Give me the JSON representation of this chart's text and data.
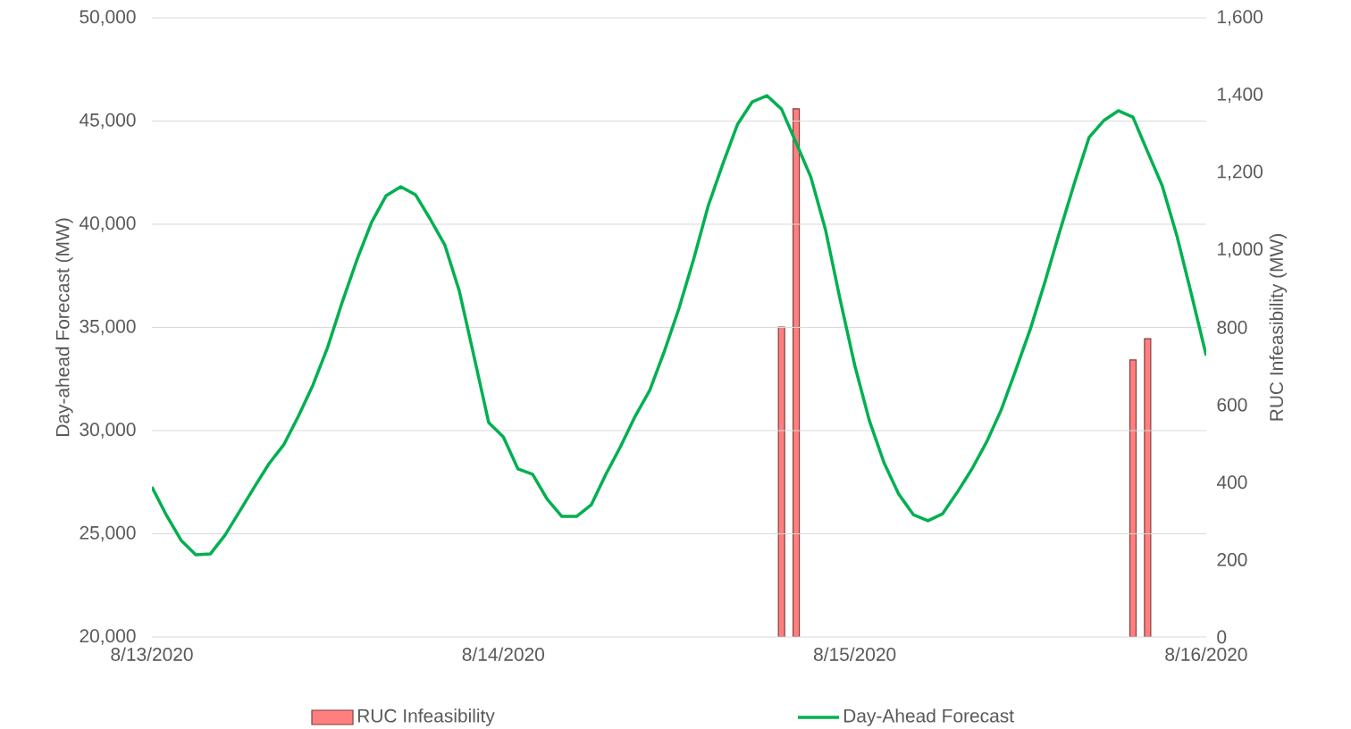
{
  "chart_data": {
    "type": "line",
    "ylabel": "Day-ahead  Forecast (MW)",
    "y2label": "RUC Infeasibility (MW)",
    "xlim": [
      "2020-08-13T00:00",
      "2020-08-16T00:00"
    ],
    "xticks": [
      {
        "value": "2020-08-13T00:00",
        "label": "8/13/2020"
      },
      {
        "value": "2020-08-14T00:00",
        "label": "8/14/2020"
      },
      {
        "value": "2020-08-15T00:00",
        "label": "8/15/2020"
      },
      {
        "value": "2020-08-16T00:00",
        "label": "8/16/2020"
      }
    ],
    "ylim": [
      20000,
      50000
    ],
    "yticks": [
      {
        "value": 20000,
        "label": "20,000"
      },
      {
        "value": 25000,
        "label": "25,000"
      },
      {
        "value": 30000,
        "label": "30,000"
      },
      {
        "value": 35000,
        "label": "35,000"
      },
      {
        "value": 40000,
        "label": "40,000"
      },
      {
        "value": 45000,
        "label": "45,000"
      },
      {
        "value": 50000,
        "label": "50,000"
      }
    ],
    "y2lim": [
      0,
      1600
    ],
    "y2ticks": [
      0,
      {
        "value": 200,
        "label": "200"
      },
      {
        "value": 400,
        "label": "400"
      },
      {
        "value": 600,
        "label": "600"
      },
      {
        "value": 800,
        "label": "800"
      },
      {
        "value": 1000,
        "label": "1,000"
      },
      {
        "value": 1200,
        "label": "1,200"
      },
      {
        "value": 1400,
        "label": "1,400"
      },
      {
        "value": 1600,
        "label": "1,600"
      }
    ],
    "grid": "y",
    "legend": "bottom",
    "series": [
      {
        "name": "RUC Infeasibility",
        "type": "bar",
        "axis": "y2",
        "color": "#ff7f7f",
        "x": [
          "2020-08-14T19:00",
          "2020-08-14T20:00",
          "2020-08-15T19:00",
          "2020-08-15T20:00"
        ],
        "values": [
          801,
          1365,
          716,
          771
        ]
      },
      {
        "name": "Day-Ahead Forecast",
        "color": "#00b050",
        "x": [
          "2020-08-13T00:00",
          "2020-08-13T01:00",
          "2020-08-13T02:00",
          "2020-08-13T03:00",
          "2020-08-13T04:00",
          "2020-08-13T05:00",
          "2020-08-13T06:00",
          "2020-08-13T07:00",
          "2020-08-13T08:00",
          "2020-08-13T09:00",
          "2020-08-13T10:00",
          "2020-08-13T11:00",
          "2020-08-13T12:00",
          "2020-08-13T13:00",
          "2020-08-13T14:00",
          "2020-08-13T15:00",
          "2020-08-13T16:00",
          "2020-08-13T17:00",
          "2020-08-13T18:00",
          "2020-08-13T19:00",
          "2020-08-13T20:00",
          "2020-08-13T21:00",
          "2020-08-13T22:00",
          "2020-08-13T23:00",
          "2020-08-14T00:00",
          "2020-08-14T01:00",
          "2020-08-14T02:00",
          "2020-08-14T03:00",
          "2020-08-14T04:00",
          "2020-08-14T05:00",
          "2020-08-14T06:00",
          "2020-08-14T07:00",
          "2020-08-14T08:00",
          "2020-08-14T09:00",
          "2020-08-14T10:00",
          "2020-08-14T11:00",
          "2020-08-14T12:00",
          "2020-08-14T13:00",
          "2020-08-14T14:00",
          "2020-08-14T15:00",
          "2020-08-14T16:00",
          "2020-08-14T17:00",
          "2020-08-14T18:00",
          "2020-08-14T19:00",
          "2020-08-14T20:00",
          "2020-08-14T21:00",
          "2020-08-14T22:00",
          "2020-08-14T23:00",
          "2020-08-15T00:00",
          "2020-08-15T01:00",
          "2020-08-15T02:00",
          "2020-08-15T03:00",
          "2020-08-15T04:00",
          "2020-08-15T05:00",
          "2020-08-15T06:00",
          "2020-08-15T07:00",
          "2020-08-15T08:00",
          "2020-08-15T09:00",
          "2020-08-15T10:00",
          "2020-08-15T11:00",
          "2020-08-15T12:00",
          "2020-08-15T13:00",
          "2020-08-15T14:00",
          "2020-08-15T15:00",
          "2020-08-15T16:00",
          "2020-08-15T17:00",
          "2020-08-15T18:00",
          "2020-08-15T19:00",
          "2020-08-15T20:00",
          "2020-08-15T21:00",
          "2020-08-15T22:00",
          "2020-08-15T23:00",
          "2020-08-16T00:00"
        ],
        "values": [
          27270,
          25890,
          24680,
          23980,
          24030,
          24940,
          26100,
          27270,
          28400,
          29310,
          30690,
          32210,
          34030,
          36230,
          38270,
          40090,
          41390,
          41820,
          41430,
          40260,
          39000,
          36750,
          33590,
          30390,
          29700,
          28140,
          27880,
          26670,
          25840,
          25840,
          26400,
          27880,
          29220,
          30690,
          31950,
          33850,
          35930,
          38310,
          40910,
          42940,
          44850,
          45930,
          46230,
          45580,
          43940,
          42290,
          39740,
          36360,
          33160,
          30480,
          28440,
          26930,
          25930,
          25630,
          25970,
          27010,
          28140,
          29440,
          31000,
          32940,
          34940,
          37230,
          39650,
          41990,
          44200,
          45020,
          45500,
          45190,
          43510,
          41860,
          39440,
          36580,
          33640
        ]
      }
    ]
  }
}
